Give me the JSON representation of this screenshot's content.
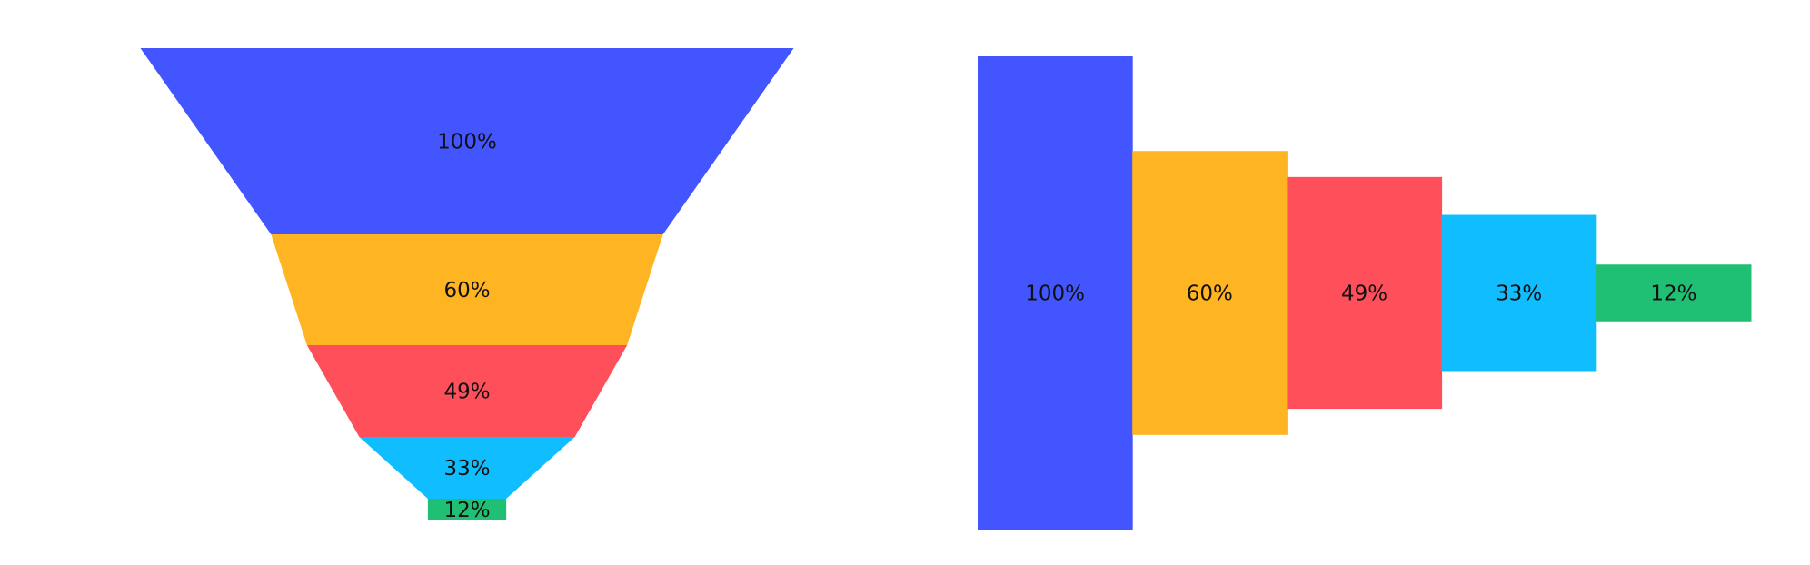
{
  "chart_data": [
    {
      "type": "funnel",
      "orientation": "vertical",
      "values": [
        100,
        60,
        49,
        33,
        12
      ],
      "labels": [
        "100%",
        "60%",
        "49%",
        "33%",
        "12%"
      ],
      "colors": [
        "#4355FF",
        "#FFB422",
        "#FF4F5A",
        "#10BEFF",
        "#20C074"
      ]
    },
    {
      "type": "bar",
      "orientation": "horizontal-funnel",
      "values": [
        100,
        60,
        49,
        33,
        12
      ],
      "labels": [
        "100%",
        "60%",
        "49%",
        "33%",
        "12%"
      ],
      "colors": [
        "#4355FF",
        "#FFB422",
        "#FF4F5A",
        "#10BEFF",
        "#20C074"
      ]
    }
  ]
}
